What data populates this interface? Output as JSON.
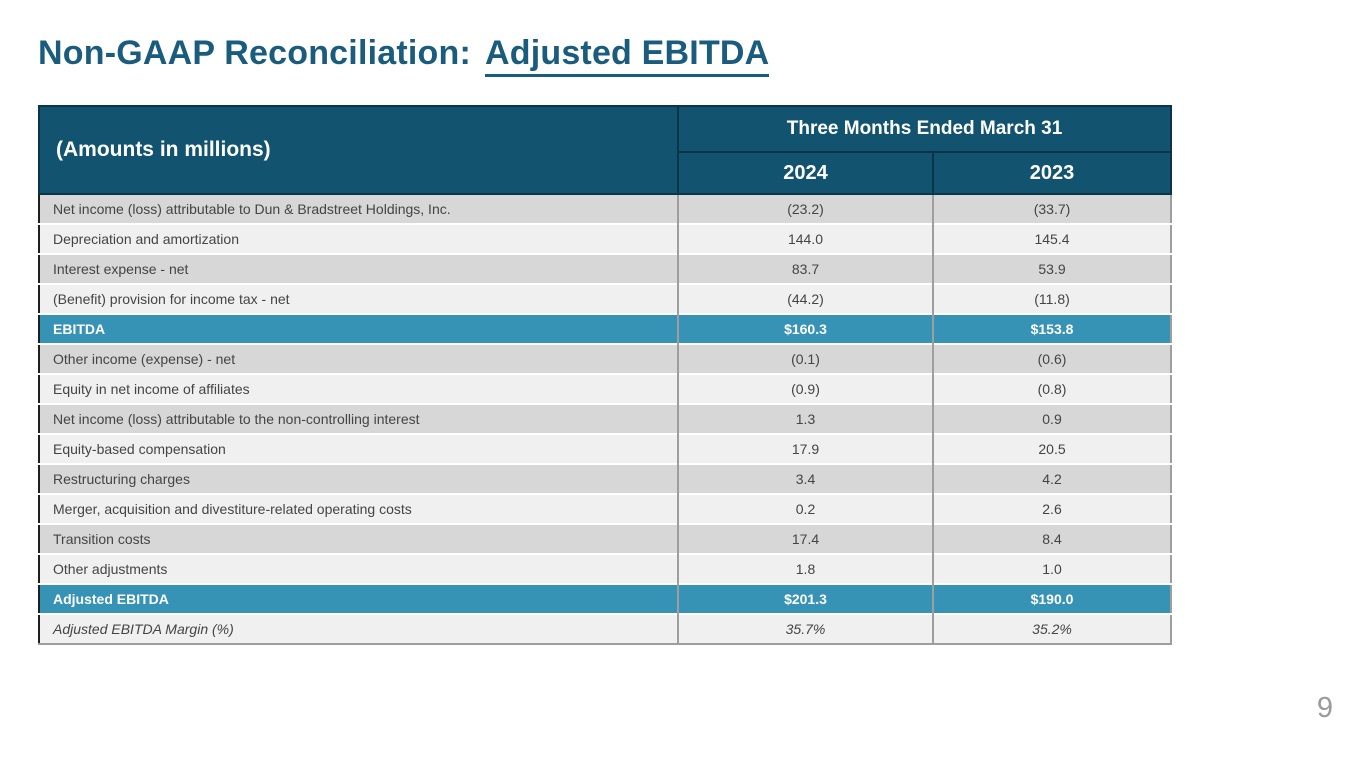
{
  "title": {
    "prefix": "Non-GAAP Reconciliation:",
    "highlight": "Adjusted EBITDA"
  },
  "page_number": "9",
  "colors": {
    "header_bg": "#12536F",
    "header_border": "#0B3349",
    "highlight_bg": "#3793B5",
    "row_gray": "#D7D7D7",
    "row_light": "#F0F0F0",
    "body_text": "#444444",
    "title_text": "#1A5C7D",
    "page_number_text": "#9A9A9A"
  },
  "table": {
    "corner_header": "(Amounts in millions)",
    "group_header": "Three Months Ended March 31",
    "col_headers": [
      "2024",
      "2023"
    ],
    "rows": [
      {
        "label": "Net income (loss) attributable to Dun & Bradstreet Holdings, Inc.",
        "y2024": "(23.2)",
        "y2023": "(33.7)",
        "style": "gray"
      },
      {
        "label": "Depreciation and amortization",
        "y2024": "144.0",
        "y2023": "145.4",
        "style": "light"
      },
      {
        "label": "Interest expense - net",
        "y2024": "83.7",
        "y2023": "53.9",
        "style": "gray"
      },
      {
        "label": "(Benefit) provision for income tax - net",
        "y2024": "(44.2)",
        "y2023": "(11.8)",
        "style": "light"
      },
      {
        "label": "EBITDA",
        "y2024": "$160.3",
        "y2023": "$153.8",
        "style": "highlight"
      },
      {
        "label": "Other income (expense) - net",
        "y2024": "(0.1)",
        "y2023": "(0.6)",
        "style": "gray"
      },
      {
        "label": "Equity in net income of affiliates",
        "y2024": "(0.9)",
        "y2023": "(0.8)",
        "style": "light"
      },
      {
        "label": "Net income (loss) attributable to the non-controlling interest",
        "y2024": "1.3",
        "y2023": "0.9",
        "style": "gray"
      },
      {
        "label": "Equity-based compensation",
        "y2024": "17.9",
        "y2023": "20.5",
        "style": "light"
      },
      {
        "label": "Restructuring charges",
        "y2024": "3.4",
        "y2023": "4.2",
        "style": "gray"
      },
      {
        "label": "Merger, acquisition and divestiture-related operating costs",
        "y2024": "0.2",
        "y2023": "2.6",
        "style": "light"
      },
      {
        "label": "Transition costs",
        "y2024": "17.4",
        "y2023": "8.4",
        "style": "gray"
      },
      {
        "label": "Other adjustments",
        "y2024": "1.8",
        "y2023": "1.0",
        "style": "light"
      },
      {
        "label": "Adjusted EBITDA",
        "y2024": "$201.3",
        "y2023": "$190.0",
        "style": "highlight"
      },
      {
        "label": "Adjusted EBITDA Margin (%)",
        "y2024": "35.7%",
        "y2023": "35.2%",
        "style": "margin"
      }
    ]
  },
  "chart_data": {
    "type": "table",
    "title": "Non-GAAP Reconciliation: Adjusted EBITDA",
    "group_header": "Three Months Ended March 31",
    "columns": [
      "(Amounts in millions)",
      "2024",
      "2023"
    ],
    "rows": [
      [
        "Net income (loss) attributable to Dun & Bradstreet Holdings, Inc.",
        "(23.2)",
        "(33.7)"
      ],
      [
        "Depreciation and amortization",
        "144.0",
        "145.4"
      ],
      [
        "Interest expense - net",
        "83.7",
        "53.9"
      ],
      [
        "(Benefit) provision for income tax - net",
        "(44.2)",
        "(11.8)"
      ],
      [
        "EBITDA",
        "$160.3",
        "$153.8"
      ],
      [
        "Other income (expense) - net",
        "(0.1)",
        "(0.6)"
      ],
      [
        "Equity in net income of affiliates",
        "(0.9)",
        "(0.8)"
      ],
      [
        "Net income (loss) attributable to the non-controlling interest",
        "1.3",
        "0.9"
      ],
      [
        "Equity-based compensation",
        "17.9",
        "20.5"
      ],
      [
        "Restructuring charges",
        "3.4",
        "4.2"
      ],
      [
        "Merger, acquisition and divestiture-related operating costs",
        "0.2",
        "2.6"
      ],
      [
        "Transition costs",
        "17.4",
        "8.4"
      ],
      [
        "Other adjustments",
        "1.8",
        "1.0"
      ],
      [
        "Adjusted EBITDA",
        "$201.3",
        "$190.0"
      ],
      [
        "Adjusted EBITDA Margin (%)",
        "35.7%",
        "35.2%"
      ]
    ]
  }
}
